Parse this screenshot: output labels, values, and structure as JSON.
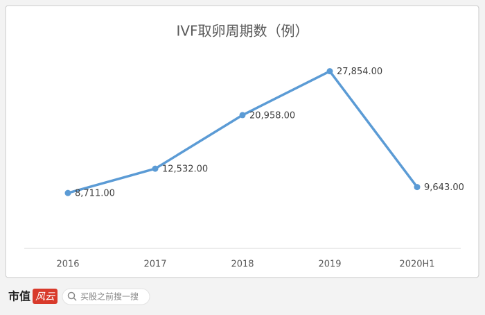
{
  "chart_data": {
    "type": "line",
    "title": "IVF取卵周期数（例）",
    "categories": [
      "2016",
      "2017",
      "2018",
      "2019",
      "2020H1"
    ],
    "series": [
      {
        "name": "IVF取卵周期数",
        "color": "#5b9bd5",
        "values": [
          8711,
          12532,
          20958,
          27854,
          9643
        ],
        "value_labels": [
          "8,711.00",
          "12,532.00",
          "20,958.00",
          "27,854.00",
          "9,643.00"
        ]
      }
    ],
    "ylim": [
      0,
      30000
    ],
    "grid": false,
    "legend": false
  },
  "footer": {
    "brand": "市值",
    "brand_mark": "风云",
    "search_placeholder": "买股之前搜一搜"
  }
}
